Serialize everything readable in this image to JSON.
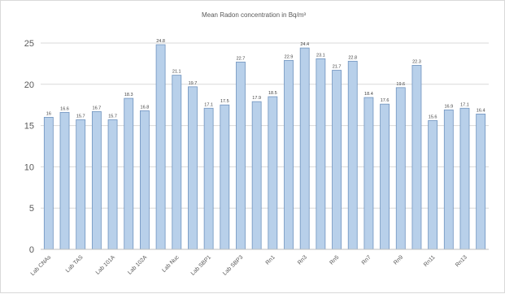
{
  "chart_data": {
    "type": "bar",
    "title": "Mean Radon concentration in Bq/m³",
    "xlabel": "",
    "ylabel": "",
    "ylim": [
      0,
      25
    ],
    "yticks": [
      0,
      5,
      10,
      15,
      20,
      25
    ],
    "grid": true,
    "legend": "none",
    "bar_color": "#b8d0ea",
    "bar_edge_color": "#6f93bf",
    "grid_color": "#d9d9d9",
    "categories": [
      "Lab CNAs",
      "",
      "Lab TAS",
      "",
      "Lab 101A",
      "",
      "Lab 102A",
      "",
      "Lab Nuc",
      "",
      "Lab SBP1",
      "",
      "Lab SBP3",
      "",
      "Rn1",
      "",
      "Rn3",
      "",
      "Rn5",
      "",
      "Rn7",
      "",
      "Rn9",
      "",
      "Rn11",
      "",
      "Rn13",
      ""
    ],
    "values": [
      16,
      16.6,
      15.7,
      16.7,
      15.7,
      18.3,
      16.8,
      24.8,
      21.1,
      19.7,
      17.1,
      17.5,
      22.7,
      17.9,
      18.5,
      22.9,
      24.4,
      23.1,
      21.7,
      22.8,
      18.4,
      17.6,
      19.6,
      22.3,
      15.6,
      16.9,
      17.1,
      16.4
    ],
    "value_labels": [
      "16",
      "16.6",
      "15.7",
      "16.7",
      "15.7",
      "18.3",
      "16.8",
      "24.8",
      "21.1",
      "19.7",
      "17.1",
      "17.5",
      "22.7",
      "17.9",
      "18.5",
      "22.9",
      "24.4",
      "23.1",
      "21.7",
      "22.8",
      "18.4",
      "17.6",
      "19.6",
      "22.3",
      "15.6",
      "16.9",
      "17.1",
      "16.4"
    ]
  }
}
